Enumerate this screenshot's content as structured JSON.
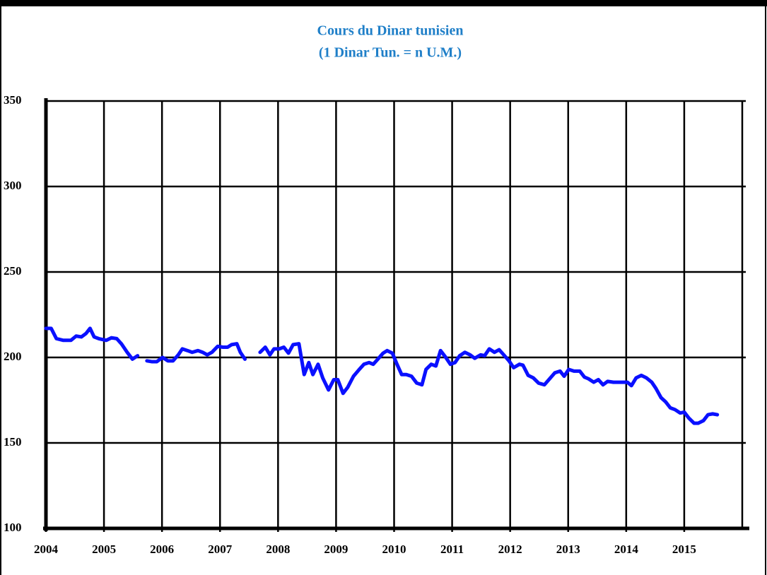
{
  "chart_data": {
    "type": "line",
    "title": "Cours du Dinar tunisien",
    "subtitle": "(1 Dinar Tun. = n U.M.)",
    "xlim": [
      2004,
      2016
    ],
    "xticks": [
      2004,
      2005,
      2006,
      2007,
      2008,
      2009,
      2010,
      2011,
      2012,
      2013,
      2014,
      2015
    ],
    "ylim": [
      100,
      350
    ],
    "yticks": [
      100,
      150,
      200,
      250,
      300,
      350
    ],
    "grid": true,
    "series": [
      {
        "color": "#0a10ff",
        "x": [
          2004.0,
          2004.09,
          2004.18,
          2004.3,
          2004.43,
          2004.52,
          2004.61,
          2004.69,
          2004.76,
          2004.83,
          2004.91,
          2005.04,
          2005.13,
          2005.22,
          2005.3,
          2005.4,
          2005.49,
          2005.58,
          null,
          2005.74,
          2005.83,
          2005.91,
          2006.01,
          2006.1,
          2006.19,
          2006.28,
          2006.35,
          2006.44,
          2006.52,
          2006.62,
          2006.7,
          2006.78,
          2006.86,
          2006.96,
          2007.05,
          2007.13,
          2007.2,
          2007.29,
          2007.35,
          2007.43,
          null,
          2007.69,
          2007.78,
          2007.86,
          2007.93,
          2008.02,
          2008.1,
          2008.18,
          2008.26,
          2008.36,
          2008.45,
          2008.53,
          2008.6,
          2008.69,
          2008.77,
          2008.87,
          2008.96,
          2009.03,
          2009.12,
          2009.2,
          2009.3,
          2009.4,
          2009.48,
          2009.57,
          2009.64,
          2009.72,
          2009.81,
          2009.88,
          2009.97,
          2010.05,
          2010.13,
          2010.21,
          2010.3,
          2010.39,
          2010.48,
          2010.55,
          2010.64,
          2010.72,
          2010.8,
          2010.88,
          2010.97,
          2011.05,
          2011.13,
          2011.22,
          2011.31,
          2011.39,
          2011.49,
          2011.56,
          2011.64,
          2011.73,
          2011.81,
          2011.89,
          2011.98,
          2012.06,
          2012.16,
          2012.22,
          2012.31,
          2012.4,
          2012.49,
          2012.59,
          2012.68,
          2012.77,
          2012.86,
          2012.93,
          2013.01,
          2013.1,
          2013.2,
          2013.28,
          2013.35,
          2013.44,
          2013.52,
          2013.6,
          2013.68,
          2013.78,
          2013.87,
          2013.95,
          2014.02,
          2014.09,
          2014.17,
          2014.26,
          2014.35,
          2014.44,
          2014.51,
          2014.6,
          2014.68,
          2014.76,
          2014.84,
          2014.93,
          2015.0,
          2015.08,
          2015.17,
          2015.24,
          2015.33,
          2015.41,
          2015.49,
          2015.57
        ],
        "values": [
          217,
          217,
          211,
          210,
          210,
          212.5,
          212,
          214,
          217,
          212,
          211,
          210,
          211.5,
          211,
          208,
          203,
          199,
          201,
          null,
          198,
          197.5,
          197.5,
          200,
          198,
          198,
          201.5,
          205,
          204,
          203,
          204,
          203,
          201.5,
          203,
          206.5,
          206,
          206,
          207.5,
          208,
          203,
          199,
          null,
          203,
          206,
          201.5,
          205,
          205,
          206,
          202.5,
          207.5,
          208,
          190,
          197,
          190,
          196,
          188,
          181,
          187,
          187,
          179,
          182.5,
          189,
          193,
          196,
          197,
          196,
          199,
          202.5,
          204,
          202.5,
          196,
          190,
          190,
          189,
          185,
          184,
          193,
          196,
          195,
          204,
          200.5,
          196,
          197,
          201,
          203,
          201.5,
          199.5,
          201.5,
          201,
          205,
          203,
          204.5,
          201.5,
          198,
          194,
          196,
          195.5,
          189.5,
          188,
          185,
          184,
          187.5,
          191,
          192,
          189,
          193,
          192,
          192,
          188.5,
          187.5,
          185.5,
          187,
          184,
          186,
          185.5,
          185.5,
          185.5,
          185.5,
          183.5,
          188,
          189.5,
          188,
          185.5,
          182,
          176.5,
          174,
          170.5,
          169.5,
          167.5,
          168,
          164.5,
          161.5,
          161.5,
          163,
          166.5,
          167,
          166.5
        ]
      }
    ]
  }
}
